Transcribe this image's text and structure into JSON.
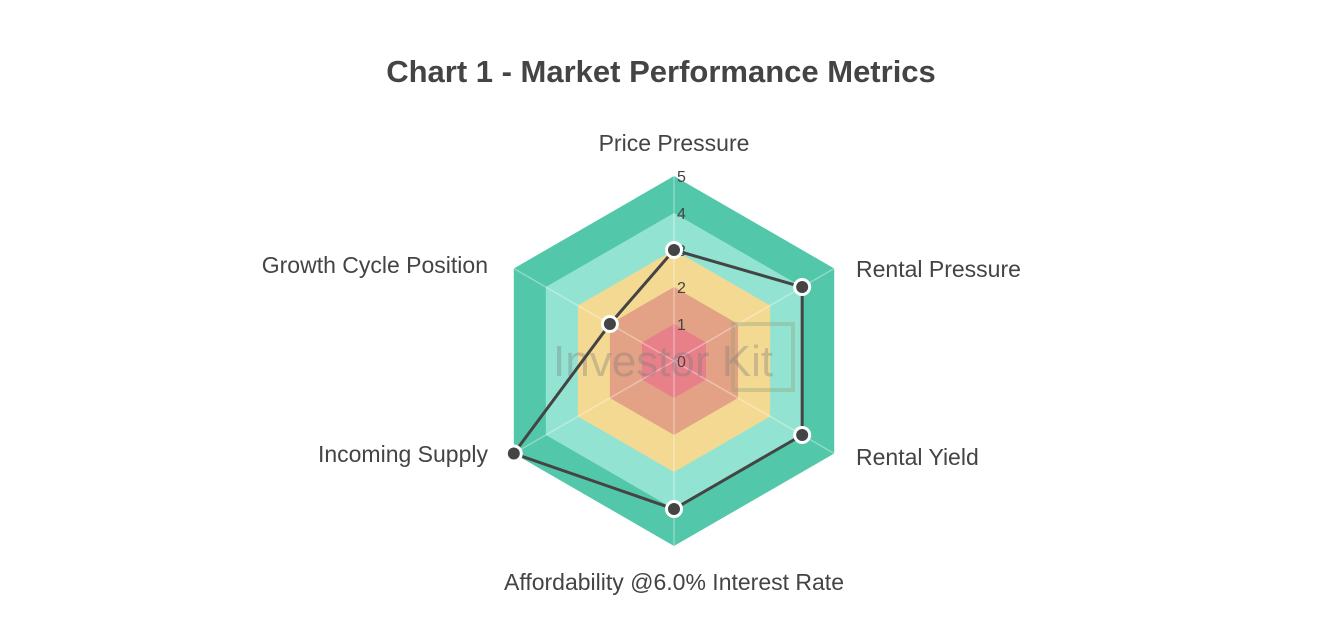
{
  "chart_data": {
    "type": "radar",
    "title": "Chart 1 - Market Performance Metrics",
    "axes": [
      "Price Pressure",
      "Rental Pressure",
      "Rental Yield",
      "Affordability @6.0% Interest Rate",
      "Incoming Supply",
      "Growth Cycle Position"
    ],
    "values": [
      3,
      4,
      4,
      4,
      5,
      2
    ],
    "range": [
      0,
      5
    ],
    "ticks": [
      "0",
      "1",
      "2",
      "3",
      "4",
      "5"
    ],
    "band_colors": [
      "#e8808a",
      "#e3a285",
      "#f4d992",
      "#93e3d2",
      "#52c7a9"
    ],
    "line_color": "#444444",
    "watermark": "Investor Kit"
  }
}
